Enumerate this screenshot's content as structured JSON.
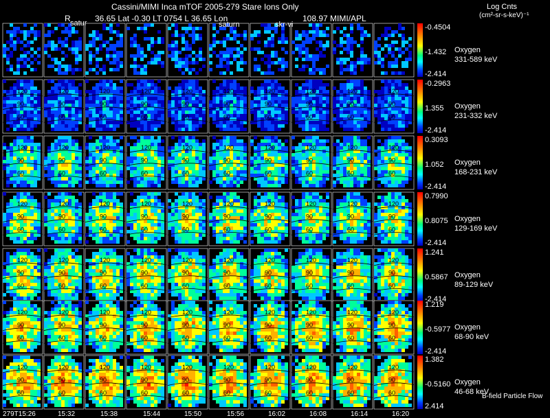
{
  "header": {
    "line1": "Cassini/MIMI Inca mTOF  2005-279   Stare    Ions Only",
    "r_label": "R",
    "coords": "36.65 Lat -0.30 LT 0754 L        36.65 Lon",
    "lon_val": "108.97  MIMI/APL",
    "units_title": "Log Cnts",
    "units": "(cm²-sr-s-keV)⁻¹"
  },
  "overlay_labels": [
    "satur",
    "saturn",
    "skr-vi"
  ],
  "panel_labels": [
    "120",
    "90",
    "60"
  ],
  "footer": {
    "legend": "B-field Particle Flow",
    "times": [
      "279T15:26",
      "15:32",
      "15:38",
      "15:44",
      "15:50",
      "15:56",
      "16:02",
      "16:08",
      "16:14",
      "16:20"
    ]
  },
  "rows": [
    {
      "species": "Oxygen",
      "energy": "331-589 keV",
      "cmax": "-0.4504",
      "cmid": "-1.432",
      "cmin": "-2.414",
      "intensity": 0.05,
      "arcs": false
    },
    {
      "species": "Oxygen",
      "energy": "231-332 keV",
      "cmax": "-0.2963",
      "cmid": "1.355",
      "cmin": "-2.414",
      "intensity": 0.32,
      "arcs": true
    },
    {
      "species": "Oxygen",
      "energy": "168-231 keV",
      "cmax": "0.3093",
      "cmid": "1.052",
      "cmin": "-2.414",
      "intensity": 0.62,
      "arcs": true
    },
    {
      "species": "Oxygen",
      "energy": "129-169 keV",
      "cmax": "0.7990",
      "cmid": "0.8075",
      "cmin": "-2.414",
      "intensity": 0.72,
      "arcs": true
    },
    {
      "species": "Oxygen",
      "energy": "89-129 keV",
      "cmax": "1.241",
      "cmid": "0.5867",
      "cmin": "-2.414",
      "intensity": 0.76,
      "arcs": true
    },
    {
      "species": "Oxygen",
      "energy": "68-90 keV",
      "cmax": "1.219",
      "cmid": "-0.5977",
      "cmin": "-2.414",
      "intensity": 0.84,
      "arcs": true
    },
    {
      "species": "Oxygen",
      "energy": "46-68 keV",
      "cmax": "1.382",
      "cmid": "-0.5160",
      "cmin": "2.414",
      "intensity": 0.92,
      "arcs": true
    }
  ]
}
